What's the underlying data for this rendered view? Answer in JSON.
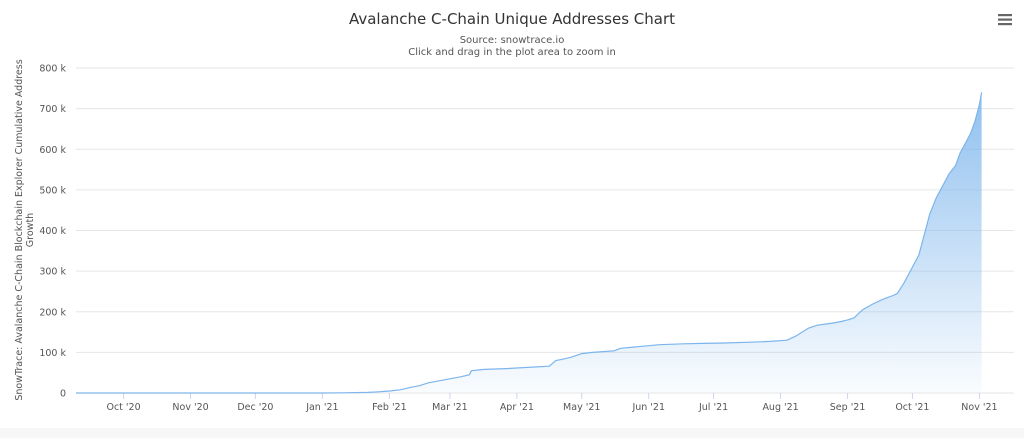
{
  "chart_data": {
    "type": "area",
    "title": "Avalanche C-Chain Unique Addresses Chart",
    "subtitle_lines": [
      "Source: snowtrace.io",
      "Click and drag in the plot area to zoom in"
    ],
    "ylabel_lines": [
      "SnowTrace: Avalanche C-Chain Blockchain Explorer Cumulative Address",
      "Growth"
    ],
    "xlabel": "",
    "x_tick_labels": [
      "Oct '20",
      "Nov '20",
      "Dec '20",
      "Jan '21",
      "Feb '21",
      "Mar '21",
      "Apr '21",
      "May '21",
      "Jun '21",
      "Jul '21",
      "Aug '21",
      "Sep '21",
      "Oct '21",
      "Nov '21"
    ],
    "y_tick_labels": [
      "0",
      "100 k",
      "200 k",
      "300 k",
      "400 k",
      "500 k",
      "600 k",
      "700 k",
      "800 k"
    ],
    "ylim": [
      0,
      800000
    ],
    "xlim": [
      "2020-09-23",
      "2021-12-01"
    ],
    "grid": true,
    "legend": "none",
    "series": [
      {
        "color": "#7cb5ec",
        "x": [
          "2020-09-23",
          "2020-10-15",
          "2020-11-15",
          "2020-12-15",
          "2021-01-15",
          "2021-01-25",
          "2021-02-05",
          "2021-02-10",
          "2021-02-15",
          "2021-02-20",
          "2021-02-25",
          "2021-03-01",
          "2021-03-05",
          "2021-03-10",
          "2021-03-15",
          "2021-03-20",
          "2021-03-24",
          "2021-03-25",
          "2021-03-31",
          "2021-04-10",
          "2021-04-20",
          "2021-04-30",
          "2021-05-03",
          "2021-05-06",
          "2021-05-10",
          "2021-05-15",
          "2021-05-20",
          "2021-05-25",
          "2021-05-30",
          "2021-06-02",
          "2021-06-10",
          "2021-06-20",
          "2021-07-01",
          "2021-07-10",
          "2021-07-20",
          "2021-08-01",
          "2021-08-10",
          "2021-08-18",
          "2021-08-22",
          "2021-08-28",
          "2021-09-01",
          "2021-09-08",
          "2021-09-12",
          "2021-09-15",
          "2021-09-18",
          "2021-09-19",
          "2021-09-22",
          "2021-09-27",
          "2021-10-01",
          "2021-10-06",
          "2021-10-08",
          "2021-10-11",
          "2021-10-14",
          "2021-10-18",
          "2021-10-20",
          "2021-10-21",
          "2021-10-23",
          "2021-10-26",
          "2021-10-29",
          "2021-11-01",
          "2021-11-04",
          "2021-11-06",
          "2021-11-09",
          "2021-11-11",
          "2021-11-13",
          "2021-11-15",
          "2021-11-16"
        ],
        "values": [
          0,
          0,
          0,
          0,
          0,
          500,
          1500,
          3000,
          5000,
          8000,
          14000,
          18000,
          25000,
          30000,
          35000,
          40000,
          45000,
          55000,
          58000,
          60000,
          63000,
          66000,
          80000,
          83000,
          88000,
          97000,
          100000,
          102000,
          104000,
          110000,
          114000,
          119000,
          121000,
          122000,
          123000,
          125000,
          127000,
          130000,
          140000,
          160000,
          167000,
          172000,
          176000,
          180000,
          185000,
          190000,
          205000,
          220000,
          230000,
          240000,
          245000,
          270000,
          300000,
          340000,
          380000,
          400000,
          440000,
          480000,
          510000,
          540000,
          560000,
          590000,
          620000,
          640000,
          670000,
          710000,
          740000
        ]
      }
    ]
  },
  "ui": {
    "menu_icon": "hamburger-menu-icon"
  }
}
